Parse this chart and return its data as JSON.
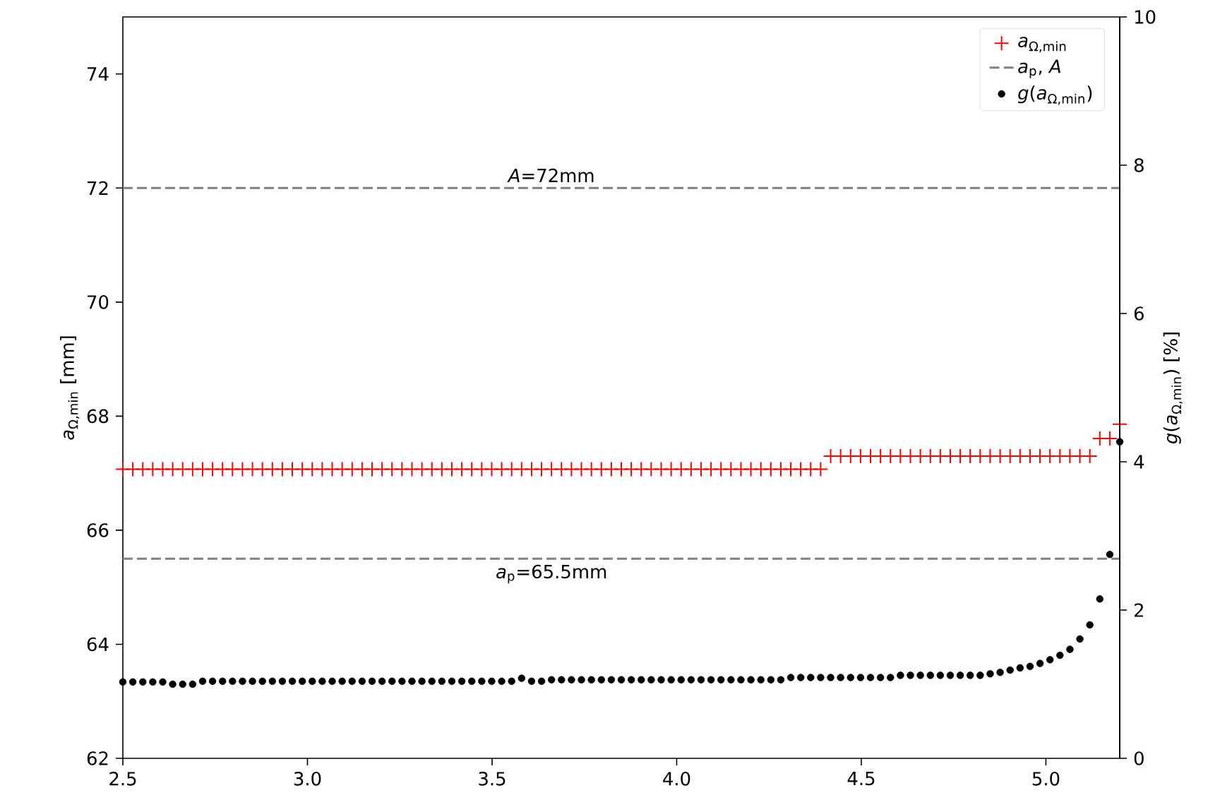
{
  "chart_data": {
    "type": "scatter",
    "x": [
      2.5,
      2.527,
      2.554,
      2.581,
      2.608,
      2.635,
      2.662,
      2.689,
      2.716,
      2.743,
      2.77,
      2.797,
      2.824,
      2.851,
      2.878,
      2.905,
      2.932,
      2.959,
      2.986,
      3.013,
      3.04,
      3.067,
      3.094,
      3.121,
      3.148,
      3.175,
      3.202,
      3.229,
      3.256,
      3.283,
      3.31,
      3.337,
      3.364,
      3.391,
      3.418,
      3.445,
      3.472,
      3.499,
      3.526,
      3.553,
      3.58,
      3.607,
      3.634,
      3.661,
      3.688,
      3.715,
      3.742,
      3.769,
      3.796,
      3.823,
      3.85,
      3.877,
      3.904,
      3.931,
      3.958,
      3.985,
      4.012,
      4.039,
      4.066,
      4.093,
      4.12,
      4.147,
      4.174,
      4.201,
      4.228,
      4.255,
      4.282,
      4.309,
      4.336,
      4.363,
      4.39,
      4.417,
      4.444,
      4.471,
      4.498,
      4.525,
      4.552,
      4.579,
      4.606,
      4.633,
      4.66,
      4.687,
      4.714,
      4.741,
      4.768,
      4.795,
      4.822,
      4.849,
      4.876,
      4.903,
      4.93,
      4.957,
      4.984,
      5.011,
      5.038,
      5.065,
      5.092,
      5.119,
      5.146,
      5.173,
      5.2
    ],
    "series": [
      {
        "name": "*a*$_{Ω,min}$",
        "color": "#ff0000",
        "marker": "cross",
        "values": [
          67.07,
          67.07,
          67.07,
          67.07,
          67.07,
          67.07,
          67.07,
          67.07,
          67.07,
          67.07,
          67.07,
          67.07,
          67.07,
          67.07,
          67.07,
          67.07,
          67.07,
          67.07,
          67.07,
          67.07,
          67.07,
          67.07,
          67.07,
          67.07,
          67.07,
          67.07,
          67.07,
          67.07,
          67.07,
          67.07,
          67.07,
          67.07,
          67.07,
          67.07,
          67.07,
          67.07,
          67.07,
          67.07,
          67.07,
          67.07,
          67.07,
          67.07,
          67.07,
          67.07,
          67.07,
          67.07,
          67.07,
          67.07,
          67.07,
          67.07,
          67.07,
          67.07,
          67.07,
          67.07,
          67.07,
          67.07,
          67.07,
          67.07,
          67.07,
          67.07,
          67.07,
          67.07,
          67.07,
          67.07,
          67.07,
          67.07,
          67.07,
          67.07,
          67.07,
          67.07,
          67.07,
          67.3,
          67.3,
          67.3,
          67.3,
          67.3,
          67.3,
          67.3,
          67.3,
          67.3,
          67.3,
          67.3,
          67.3,
          67.3,
          67.3,
          67.3,
          67.3,
          67.3,
          67.3,
          67.3,
          67.3,
          67.3,
          67.3,
          67.3,
          67.3,
          67.3,
          67.3,
          67.3,
          67.61,
          67.61,
          67.86
        ]
      },
      {
        "name": "*g*(*a*$_{Ω,min}$)",
        "color": "#000000",
        "marker": "circle",
        "axis": "y2",
        "values": [
          1.03,
          1.03,
          1.03,
          1.03,
          1.03,
          1.0,
          1.0,
          1.0,
          1.04,
          1.04,
          1.04,
          1.04,
          1.04,
          1.04,
          1.04,
          1.04,
          1.04,
          1.04,
          1.04,
          1.04,
          1.04,
          1.04,
          1.04,
          1.04,
          1.04,
          1.04,
          1.04,
          1.04,
          1.04,
          1.04,
          1.04,
          1.04,
          1.04,
          1.04,
          1.04,
          1.04,
          1.04,
          1.04,
          1.04,
          1.04,
          1.08,
          1.04,
          1.04,
          1.06,
          1.06,
          1.06,
          1.06,
          1.06,
          1.06,
          1.06,
          1.06,
          1.06,
          1.06,
          1.06,
          1.06,
          1.06,
          1.06,
          1.06,
          1.06,
          1.06,
          1.06,
          1.06,
          1.06,
          1.06,
          1.06,
          1.06,
          1.06,
          1.09,
          1.09,
          1.09,
          1.09,
          1.09,
          1.09,
          1.09,
          1.09,
          1.09,
          1.09,
          1.09,
          1.12,
          1.12,
          1.12,
          1.12,
          1.12,
          1.12,
          1.12,
          1.12,
          1.12,
          1.14,
          1.16,
          1.19,
          1.22,
          1.24,
          1.28,
          1.33,
          1.39,
          1.47,
          1.61,
          1.8,
          2.15,
          2.75,
          4.27
        ]
      }
    ],
    "xlim": [
      2.5,
      5.2
    ],
    "xticks": [
      2.5,
      {
        "value": 3,
        "label": "3.0"
      },
      3.5,
      {
        "value": 4,
        "label": "4.0"
      },
      4.5,
      {
        "value": 5,
        "label": "5.0"
      }
    ],
    "ylim": [
      62,
      75
    ],
    "yticks": [
      62,
      64,
      66,
      68,
      70,
      72,
      74
    ],
    "y2lim": [
      0,
      10
    ],
    "y2ticks": [
      0,
      2,
      4,
      6,
      8,
      10
    ],
    "ylabel": "*a*$_{Ω,min}$ [mm]",
    "y2label": "*g*(*a*$_{Ω,min}$) [%]",
    "ref_lines": [
      {
        "axis": "y",
        "value": 72,
        "label": "*A*=72mm",
        "color": "#808080",
        "line_style": "dashed"
      },
      {
        "axis": "y",
        "value": 65.5,
        "label": "*a*$_{p}$=65.5mm",
        "color": "#808080",
        "line_style": "dashed"
      }
    ],
    "annotations": [
      "*a*$_{p}$, *A*"
    ],
    "legend": "top right",
    "grid": false
  }
}
